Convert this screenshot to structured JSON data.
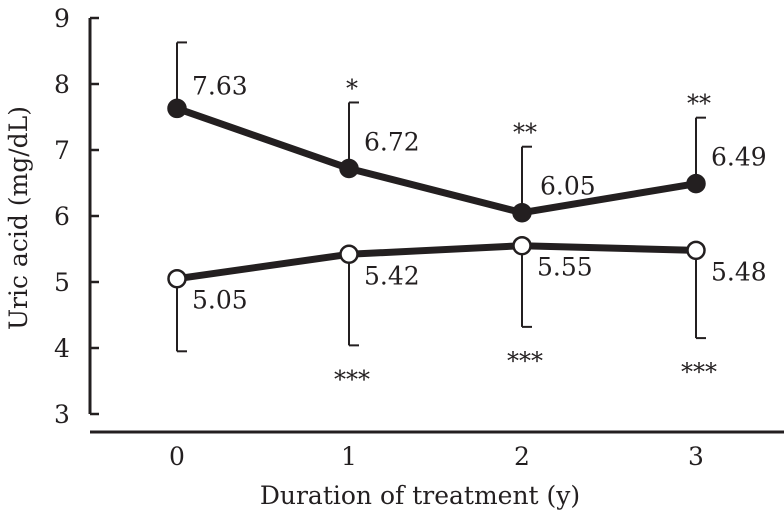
{
  "chart_data": {
    "type": "line",
    "title": "",
    "xlabel": "Duration of treatment (y)",
    "ylabel": "Uric acid (mg/dL)",
    "categories": [
      "0",
      "1",
      "2",
      "3"
    ],
    "ylim": [
      3,
      9
    ],
    "yticks": [
      "3",
      "4",
      "5",
      "6",
      "7",
      "8",
      "9"
    ],
    "grid": false,
    "legend": "none",
    "series": [
      {
        "marker": "filled-circle",
        "color": "#231f20",
        "values": [
          7.63,
          6.72,
          6.05,
          6.49
        ],
        "labels": [
          "7.63",
          "6.72",
          "6.05",
          "6.49"
        ],
        "error_plus": [
          1.0,
          1.0,
          1.0,
          1.0
        ],
        "significance": [
          "",
          "*",
          "**",
          "**"
        ]
      },
      {
        "marker": "open-circle",
        "color": "#231f20",
        "values": [
          5.05,
          5.42,
          5.55,
          5.48
        ],
        "labels": [
          "5.05",
          "5.42",
          "5.55",
          "5.48"
        ],
        "error_minus": [
          1.1,
          1.38,
          1.23,
          1.33
        ],
        "significance": [
          "",
          "***",
          "***",
          "***"
        ]
      }
    ]
  }
}
